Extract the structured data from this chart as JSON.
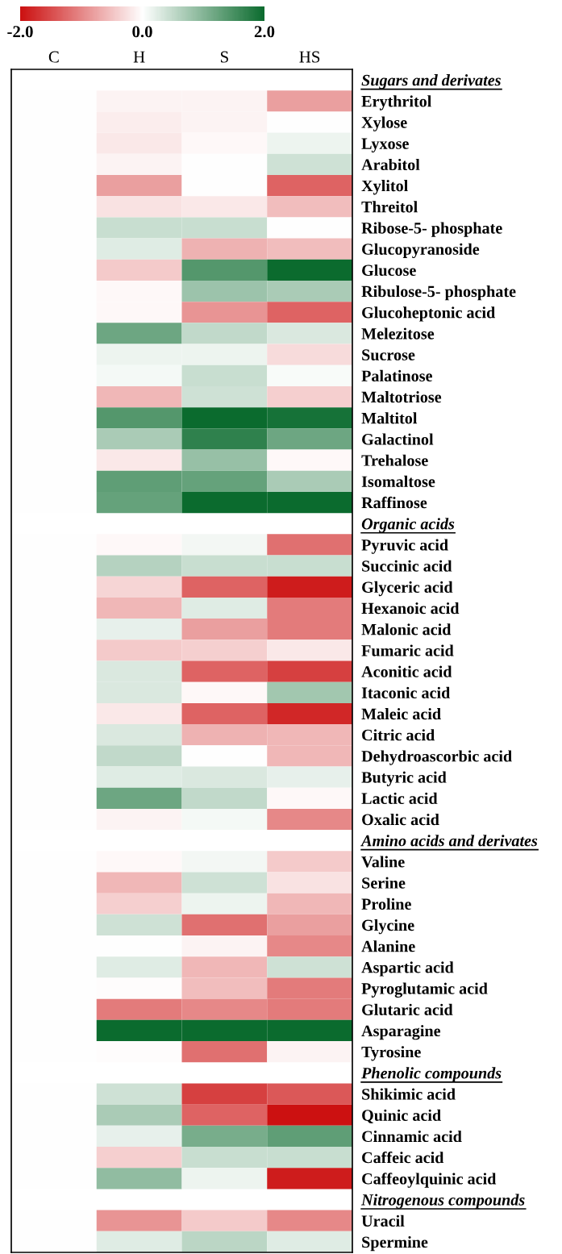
{
  "chart_data": {
    "type": "heatmap",
    "categories": [
      "C",
      "H",
      "S",
      "HS"
    ],
    "y_categories": [
      "Sugars and derivates",
      "Erythritol",
      "Xylose",
      "Lyxose",
      "Arabitol",
      "Xylitol",
      "Threitol",
      "Ribose-5- phosphate",
      "Glucopyranoside",
      "Glucose",
      "Ribulose-5- phosphate",
      "Glucoheptonic acid",
      "Melezitose",
      "Sucrose",
      "Palatinose",
      "Maltotriose",
      "Maltitol",
      "Galactinol",
      "Trehalose",
      "Isomaltose",
      "Raffinose",
      "Organic acids",
      "Pyruvic acid",
      "Succinic acid",
      "Glyceric acid",
      "Hexanoic acid",
      "Malonic acid",
      "Fumaric acid",
      "Aconitic acid",
      "Itaconic acid",
      "Maleic acid",
      "Citric acid",
      "Dehydroascorbic acid",
      "Butyric acid",
      "Lactic acid",
      "Oxalic acid",
      "Amino acids and derivates",
      "Valine",
      "Serine",
      "Proline",
      "Glycine",
      "Alanine",
      "Aspartic acid",
      "Pyroglutamic acid",
      "Glutaric acid",
      "Asparagine",
      "Tyrosine",
      "Phenolic compounds",
      "Shikimic acid",
      "Quinic acid",
      "Cinnamic acid",
      "Caffeic acid",
      "Caffeoylquinic acid",
      "Nitrogenous compounds",
      "Uracil",
      "Spermine"
    ],
    "cells": [
      [
        null,
        null,
        null,
        null
      ],
      [
        0,
        -0.1,
        -0.1,
        -0.8
      ],
      [
        0,
        -0.15,
        -0.1,
        0.0
      ],
      [
        0,
        -0.2,
        -0.05,
        0.15
      ],
      [
        0,
        -0.1,
        0.0,
        0.4
      ],
      [
        0,
        -0.8,
        0.0,
        -1.3
      ],
      [
        0,
        -0.25,
        -0.2,
        -0.55
      ],
      [
        0,
        0.45,
        0.45,
        0.0
      ],
      [
        0,
        0.25,
        -0.65,
        -0.55
      ],
      [
        0,
        -0.45,
        1.4,
        2.0
      ],
      [
        0,
        -0.05,
        0.8,
        0.7
      ],
      [
        0,
        -0.05,
        -0.9,
        -1.3
      ],
      [
        0,
        1.2,
        0.5,
        0.3
      ],
      [
        0,
        0.15,
        0.15,
        -0.3
      ],
      [
        0,
        0.08,
        0.45,
        0.05
      ],
      [
        0,
        -0.6,
        0.4,
        -0.4
      ],
      [
        0,
        1.4,
        2.0,
        1.9
      ],
      [
        0,
        0.7,
        1.7,
        1.2
      ],
      [
        0,
        -0.2,
        0.85,
        -0.05
      ],
      [
        0,
        1.3,
        1.25,
        0.7
      ],
      [
        0,
        1.25,
        2.0,
        2.0
      ],
      [
        null,
        null,
        null,
        null
      ],
      [
        0,
        -0.05,
        0.1,
        -1.2
      ],
      [
        0,
        0.6,
        0.45,
        0.45
      ],
      [
        0,
        -0.35,
        -1.3,
        -1.9
      ],
      [
        0,
        -0.6,
        0.25,
        -1.1
      ],
      [
        0,
        0.2,
        -0.8,
        -1.1
      ],
      [
        0,
        -0.45,
        -0.4,
        -0.2
      ],
      [
        0,
        0.3,
        -1.3,
        -1.6
      ],
      [
        0,
        0.3,
        -0.05,
        0.75
      ],
      [
        0,
        -0.2,
        -1.3,
        -1.8
      ],
      [
        0,
        0.3,
        -0.65,
        -0.6
      ],
      [
        0,
        0.5,
        0.0,
        -0.6
      ],
      [
        0,
        0.25,
        0.3,
        0.2
      ],
      [
        0,
        1.2,
        0.5,
        -0.05
      ],
      [
        0,
        -0.1,
        0.08,
        -1.0
      ],
      [
        null,
        null,
        null,
        null
      ],
      [
        0,
        -0.05,
        0.1,
        -0.45
      ],
      [
        0,
        -0.6,
        0.4,
        -0.25
      ],
      [
        0,
        -0.4,
        0.15,
        -0.6
      ],
      [
        0,
        0.4,
        -1.2,
        -0.8
      ],
      [
        0,
        0.0,
        -0.1,
        -1.0
      ],
      [
        0,
        0.25,
        -0.6,
        0.4
      ],
      [
        0,
        -0.02,
        -0.55,
        -1.1
      ],
      [
        0,
        -1.1,
        -1.0,
        -1.1
      ],
      [
        0,
        2.0,
        2.0,
        2.0
      ],
      [
        0,
        -0.02,
        -1.2,
        -0.1
      ],
      [
        null,
        null,
        null,
        null
      ],
      [
        0,
        0.4,
        -1.6,
        -1.4
      ],
      [
        0,
        0.7,
        -1.3,
        -2.0
      ],
      [
        0,
        0.2,
        1.1,
        1.3
      ],
      [
        0,
        -0.4,
        0.45,
        0.45
      ],
      [
        0,
        0.9,
        0.15,
        -1.9
      ],
      [
        null,
        null,
        null,
        null
      ],
      [
        0,
        -0.9,
        -0.45,
        -1.0
      ],
      [
        0,
        0.25,
        0.55,
        0.25
      ]
    ],
    "colors": [
      "#cc1111",
      "#ffffff",
      "#0b6b2e"
    ],
    "clim": [
      -2,
      2
    ],
    "cticks": [
      {
        "value": -2,
        "label": "-2.0"
      },
      {
        "value": 0,
        "label": "0.0"
      },
      {
        "value": 2,
        "label": "2.0"
      }
    ]
  }
}
